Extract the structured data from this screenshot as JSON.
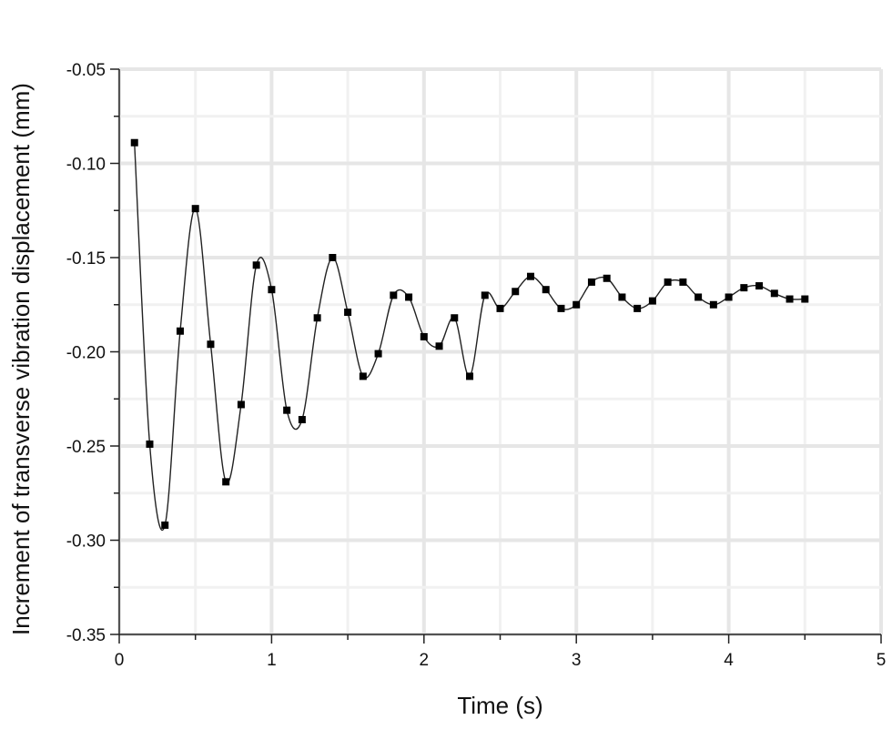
{
  "chart_data": {
    "type": "line",
    "title": "",
    "xlabel": "Time (s)",
    "ylabel": "Increment of transverse vibration displacement (mm)",
    "xlim": [
      0,
      5
    ],
    "ylim": [
      -0.35,
      -0.05
    ],
    "x_ticks": [
      "0",
      "1",
      "2",
      "3",
      "4",
      "5"
    ],
    "y_ticks": [
      "-0.05",
      "-0.10",
      "-0.15",
      "-0.20",
      "-0.25",
      "-0.30",
      "-0.35"
    ],
    "grid": true,
    "marker": "square",
    "line_color": "#222222",
    "marker_color": "#000000",
    "series": [
      {
        "x": [
          0.1,
          0.2,
          0.3,
          0.4,
          0.5,
          0.6,
          0.7,
          0.8,
          0.9,
          1.0,
          1.1,
          1.2,
          1.3,
          1.4,
          1.5,
          1.6,
          1.7,
          1.8,
          1.9,
          2.0,
          2.1,
          2.2,
          2.3,
          2.4,
          2.5,
          2.6,
          2.7,
          2.8,
          2.9,
          3.0,
          3.1,
          3.2,
          3.3,
          3.4,
          3.5,
          3.6,
          3.7,
          3.8,
          3.9,
          4.0,
          4.1,
          4.2,
          4.3,
          4.4,
          4.5
        ],
        "y": [
          -0.089,
          -0.249,
          -0.292,
          -0.189,
          -0.124,
          -0.196,
          -0.269,
          -0.228,
          -0.154,
          -0.167,
          -0.231,
          -0.236,
          -0.182,
          -0.15,
          -0.179,
          -0.213,
          -0.201,
          -0.17,
          -0.171,
          -0.192,
          -0.197,
          -0.182,
          -0.213,
          -0.17,
          -0.177,
          -0.168,
          -0.16,
          -0.167,
          -0.177,
          -0.175,
          -0.163,
          -0.161,
          -0.171,
          -0.177,
          -0.173,
          -0.163,
          -0.163,
          -0.171,
          -0.175,
          -0.171,
          -0.166,
          -0.165,
          -0.169,
          -0.172,
          -0.172
        ]
      }
    ]
  }
}
